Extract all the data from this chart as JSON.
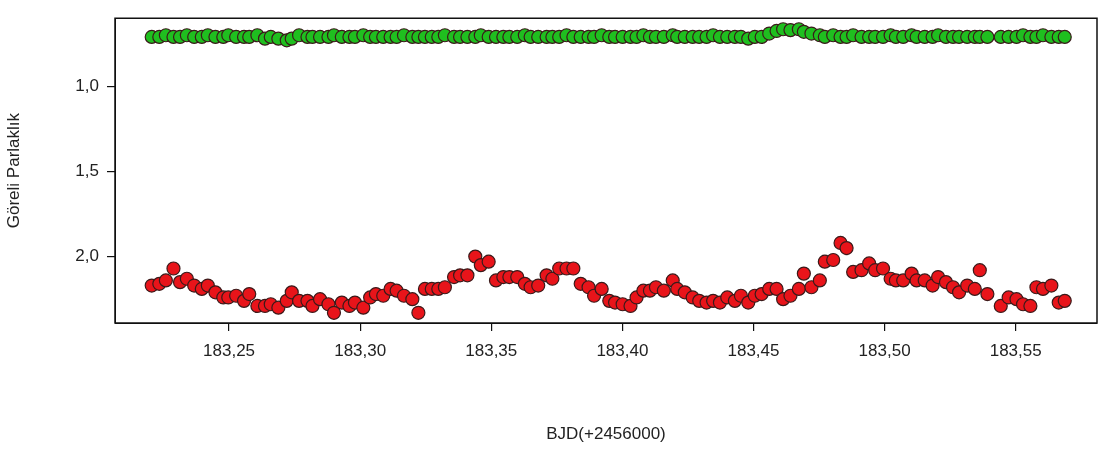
{
  "chart_data": {
    "type": "scatter",
    "xlabel": "BJD(+2456000)",
    "ylabel": "Göreli Parlaklık",
    "marker": "circle",
    "grid": false,
    "legend": false,
    "x": [
      183.2205,
      183.2234,
      183.2259,
      183.2288,
      183.2313,
      183.2339,
      183.2367,
      183.2396,
      183.2419,
      183.2448,
      183.2478,
      183.2497,
      183.2527,
      183.2557,
      183.2577,
      183.2608,
      183.2637,
      183.2659,
      183.2688,
      183.272,
      183.2739,
      183.2767,
      183.2799,
      183.2818,
      183.2847,
      183.2879,
      183.29,
      183.293,
      183.2959,
      183.298,
      183.3012,
      183.3038,
      183.306,
      183.3088,
      183.3116,
      183.3139,
      183.3167,
      183.3199,
      183.3222,
      183.3247,
      183.3273,
      183.3298,
      183.3323,
      183.3358,
      183.3381,
      183.3409,
      183.3439,
      183.346,
      183.349,
      183.3518,
      183.3546,
      183.3569,
      183.3599,
      183.3628,
      183.365,
      183.3679,
      183.3711,
      183.3733,
      183.3759,
      183.3787,
      183.3813,
      183.3841,
      183.3871,
      183.3892,
      183.3921,
      183.395,
      183.3972,
      183.4001,
      183.4031,
      183.4054,
      183.408,
      183.4105,
      183.4128,
      183.4158,
      183.4192,
      183.4209,
      183.4238,
      183.4268,
      183.4293,
      183.4321,
      183.4346,
      183.4372,
      183.44,
      183.4429,
      183.4452,
      183.448,
      183.4505,
      183.4531,
      183.456,
      183.4588,
      183.4613,
      183.4641,
      183.4673,
      183.4692,
      183.4721,
      183.4753,
      183.4772,
      183.4804,
      183.4832,
      183.4855,
      183.488,
      183.4912,
      183.4941,
      183.4964,
      183.4994,
      183.5023,
      183.5043,
      183.5071,
      183.5103,
      183.5122,
      183.5153,
      183.5183,
      183.5204,
      183.5234,
      183.5261,
      183.5284,
      183.5315,
      183.5344,
      183.5363,
      183.5392,
      183.5443,
      183.5473,
      183.5503,
      183.5528,
      183.5556,
      183.5579,
      183.5604,
      183.5636,
      183.5664,
      183.5687
    ],
    "series": [
      {
        "color": "#e8141a",
        "values": [
          2.17,
          2.16,
          2.14,
          2.07,
          2.15,
          2.13,
          2.17,
          2.19,
          2.17,
          2.21,
          2.24,
          2.24,
          2.23,
          2.26,
          2.22,
          2.29,
          2.29,
          2.28,
          2.3,
          2.26,
          2.21,
          2.26,
          2.26,
          2.29,
          2.25,
          2.28,
          2.33,
          2.27,
          2.29,
          2.27,
          2.3,
          2.24,
          2.22,
          2.23,
          2.19,
          2.2,
          2.23,
          2.25,
          2.33,
          2.19,
          2.19,
          2.19,
          2.18,
          2.12,
          2.11,
          2.11,
          2.0,
          2.05,
          2.03,
          2.14,
          2.12,
          2.12,
          2.12,
          2.16,
          2.18,
          2.17,
          2.11,
          2.13,
          2.07,
          2.07,
          2.07,
          2.16,
          2.18,
          2.23,
          2.19,
          2.26,
          2.27,
          2.28,
          2.29,
          2.24,
          2.2,
          2.2,
          2.18,
          2.2,
          2.14,
          2.19,
          2.21,
          2.24,
          2.26,
          2.27,
          2.26,
          2.27,
          2.24,
          2.26,
          2.23,
          2.27,
          2.23,
          2.22,
          2.19,
          2.19,
          2.25,
          2.23,
          2.19,
          2.1,
          2.18,
          2.14,
          2.03,
          2.02,
          1.92,
          1.95,
          2.09,
          2.08,
          2.04,
          2.08,
          2.07,
          2.13,
          2.14,
          2.14,
          2.1,
          2.14,
          2.14,
          2.17,
          2.12,
          2.15,
          2.18,
          2.21,
          2.17,
          2.19,
          2.08,
          2.22,
          2.29,
          2.24,
          2.25,
          2.28,
          2.29,
          2.18,
          2.19,
          2.17,
          2.27,
          2.26
        ]
      },
      {
        "color": "#1fbf1f",
        "values": [
          0.71,
          0.71,
          0.7,
          0.71,
          0.71,
          0.7,
          0.71,
          0.71,
          0.7,
          0.71,
          0.71,
          0.7,
          0.71,
          0.71,
          0.71,
          0.7,
          0.72,
          0.71,
          0.72,
          0.73,
          0.72,
          0.7,
          0.71,
          0.71,
          0.71,
          0.71,
          0.7,
          0.71,
          0.71,
          0.71,
          0.7,
          0.71,
          0.71,
          0.71,
          0.71,
          0.71,
          0.7,
          0.71,
          0.71,
          0.71,
          0.71,
          0.71,
          0.7,
          0.71,
          0.71,
          0.71,
          0.71,
          0.7,
          0.71,
          0.71,
          0.71,
          0.71,
          0.71,
          0.7,
          0.71,
          0.71,
          0.71,
          0.71,
          0.71,
          0.7,
          0.71,
          0.71,
          0.71,
          0.71,
          0.7,
          0.71,
          0.71,
          0.71,
          0.71,
          0.71,
          0.7,
          0.71,
          0.71,
          0.71,
          0.7,
          0.71,
          0.71,
          0.71,
          0.71,
          0.71,
          0.7,
          0.71,
          0.71,
          0.71,
          0.71,
          0.72,
          0.71,
          0.71,
          0.69,
          0.675,
          0.665,
          0.67,
          0.665,
          0.68,
          0.69,
          0.7,
          0.71,
          0.7,
          0.71,
          0.71,
          0.7,
          0.71,
          0.71,
          0.71,
          0.71,
          0.7,
          0.71,
          0.71,
          0.7,
          0.71,
          0.71,
          0.71,
          0.7,
          0.71,
          0.71,
          0.71,
          0.71,
          0.71,
          0.71,
          0.71,
          0.71,
          0.71,
          0.71,
          0.7,
          0.71,
          0.71,
          0.7,
          0.71,
          0.71,
          0.71
        ]
      }
    ],
    "xlim": [
      183.2065,
      183.581
    ],
    "xticks": [
      {
        "value": 183.25,
        "label": "183,25"
      },
      {
        "value": 183.3,
        "label": "183,30"
      },
      {
        "value": 183.35,
        "label": "183,35"
      },
      {
        "value": 183.4,
        "label": "183,40"
      },
      {
        "value": 183.45,
        "label": "183,45"
      },
      {
        "value": 183.5,
        "label": "183,50"
      },
      {
        "value": 183.55,
        "label": "183,55"
      }
    ],
    "ylim": [
      2.39,
      0.6
    ],
    "yticks": [
      {
        "value": 1,
        "label": "1,0"
      },
      {
        "value": 1.5,
        "label": "1,5"
      },
      {
        "value": 2,
        "label": "2,0"
      }
    ]
  }
}
